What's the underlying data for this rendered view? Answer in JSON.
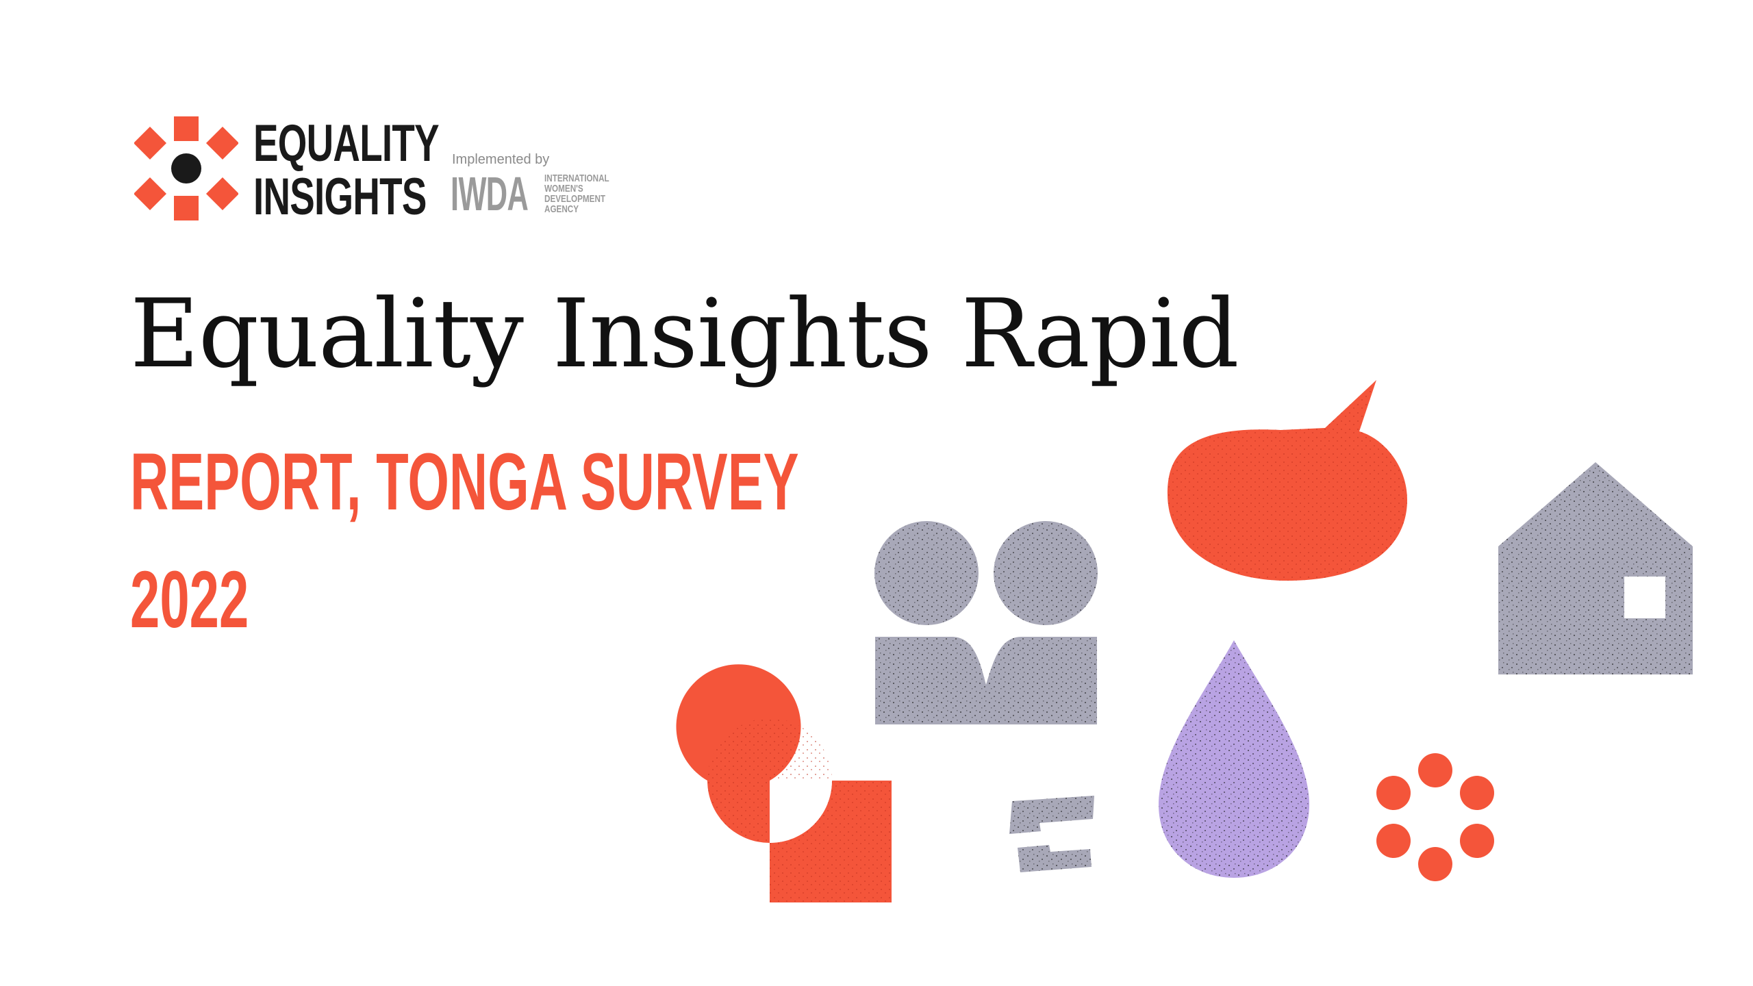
{
  "brand": {
    "line1": "EQUALITY",
    "line2": "INSIGHTS",
    "implemented_by": "Implemented by",
    "partner_acronym": "IWDA",
    "partner_name_lines": [
      "INTERNATIONAL",
      "WOMEN'S",
      "DEVELOPMENT",
      "AGENCY"
    ]
  },
  "document": {
    "title": "Equality Insights Rapid",
    "subtitle": "REPORT, TONGA SURVEY",
    "year": "2022"
  },
  "colors": {
    "accent": "#f4553a",
    "text": "#111111",
    "grey_shape": "#a8a8b8",
    "lavender_shape": "#b9a3e3",
    "partner_grey": "#9a9a9a"
  },
  "illustration_icons": [
    "speech-bubble-icon",
    "house-icon",
    "two-people-icon",
    "water-drop-icon",
    "circle-square-icon",
    "dots-ring-icon",
    "bracket-icon"
  ]
}
